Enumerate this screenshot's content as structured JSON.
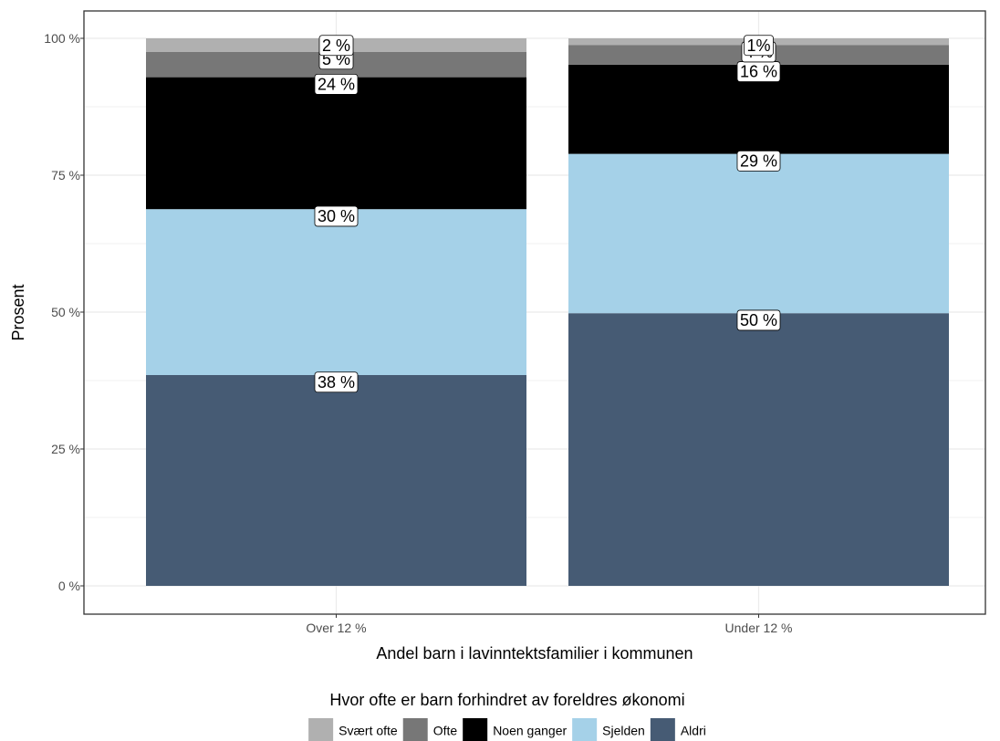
{
  "chart_data": {
    "type": "bar",
    "stacked": true,
    "categories": [
      "Over 12  %",
      "Under 12  %"
    ],
    "series": [
      {
        "name": "Aldri",
        "values": [
          38.5,
          49.8
        ],
        "labels": [
          "38 %",
          "50 %"
        ],
        "color": "#465b74"
      },
      {
        "name": "Sjelden",
        "values": [
          30.3,
          29.1
        ],
        "labels": [
          "30 %",
          "29 %"
        ],
        "color": "#a5d1e8"
      },
      {
        "name": "Noen ganger",
        "values": [
          24.1,
          16.3
        ],
        "labels": [
          "24 %",
          "16 %"
        ],
        "color": "#000000"
      },
      {
        "name": "Ofte",
        "values": [
          4.6,
          3.6
        ],
        "labels": [
          "5 %",
          "4 %"
        ],
        "color": "#777777"
      },
      {
        "name": "Svært ofte",
        "values": [
          2.5,
          1.2
        ],
        "labels": [
          "2 %",
          "1%"
        ],
        "color": "#b0b0b0"
      }
    ],
    "xlabel": "Andel barn i lavinntektsfamilier i kommunen",
    "ylabel": "Prosent",
    "ylim": [
      0,
      100
    ],
    "yticks": [
      0,
      25,
      50,
      75,
      100
    ],
    "ytick_labels": [
      "0 %",
      "25 %",
      "50 %",
      "75 %",
      "100 %"
    ],
    "grid": true,
    "legend": {
      "title": "Hvor ofte er barn forhindret av foreldres økonomi",
      "position": "bottom",
      "order": [
        "Svært ofte",
        "Ofte",
        "Noen ganger",
        "Sjelden",
        "Aldri"
      ]
    }
  }
}
